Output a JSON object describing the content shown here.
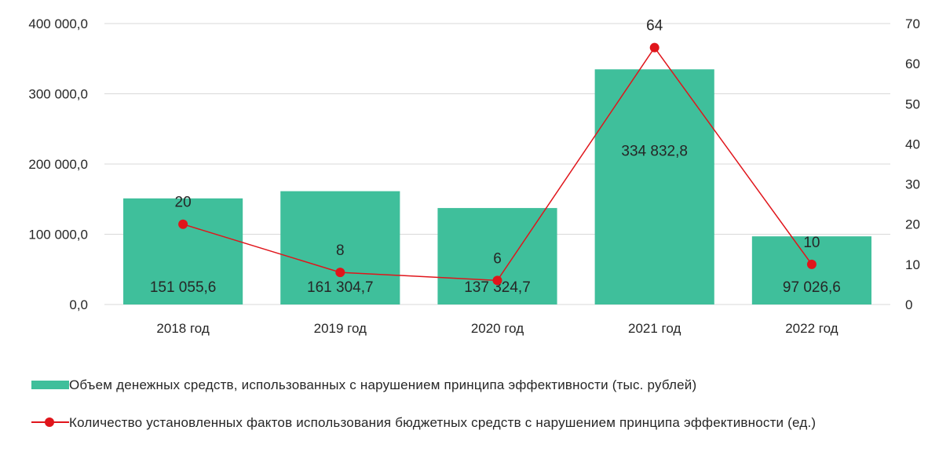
{
  "chart_data": {
    "type": "bar",
    "categories": [
      "2018 год",
      "2019 год",
      "2020 год",
      "2021 год",
      "2022 год"
    ],
    "series": [
      {
        "name": "Объем денежных средств, использованных с нарушением принципа эффективности (тыс. рублей)",
        "type": "bar",
        "axis": "left",
        "values": [
          151055.6,
          161304.7,
          137324.7,
          334832.8,
          97026.6
        ],
        "labels": [
          "151 055,6",
          "161 304,7",
          "137 324,7",
          "334 832,8",
          "97 026,6"
        ]
      },
      {
        "name": "Количество установленных фактов использования бюджетных средств с нарушением принципа эффективности (ед.)",
        "type": "line",
        "axis": "right",
        "values": [
          20,
          8,
          6,
          64,
          10
        ],
        "labels": [
          "20",
          "8",
          "6",
          "64",
          "10"
        ]
      }
    ],
    "y_left": {
      "ylim": [
        0,
        400000
      ],
      "ticks": [
        0,
        100000,
        200000,
        300000,
        400000
      ],
      "tick_labels": [
        "0,0",
        "100 000,0",
        "200 000,0",
        "300 000,0",
        "400 000,0"
      ]
    },
    "y_right": {
      "ylim": [
        0,
        70
      ],
      "ticks": [
        0,
        10,
        20,
        30,
        40,
        50,
        60,
        70
      ],
      "tick_labels": [
        "0",
        "10",
        "20",
        "30",
        "40",
        "50",
        "60",
        "70"
      ]
    },
    "grid": true,
    "legend_position": "bottom",
    "colors": {
      "bar": "#3fbf9b",
      "line": "#e0151b",
      "grid": "#d9d9d9",
      "text": "#262626"
    }
  }
}
